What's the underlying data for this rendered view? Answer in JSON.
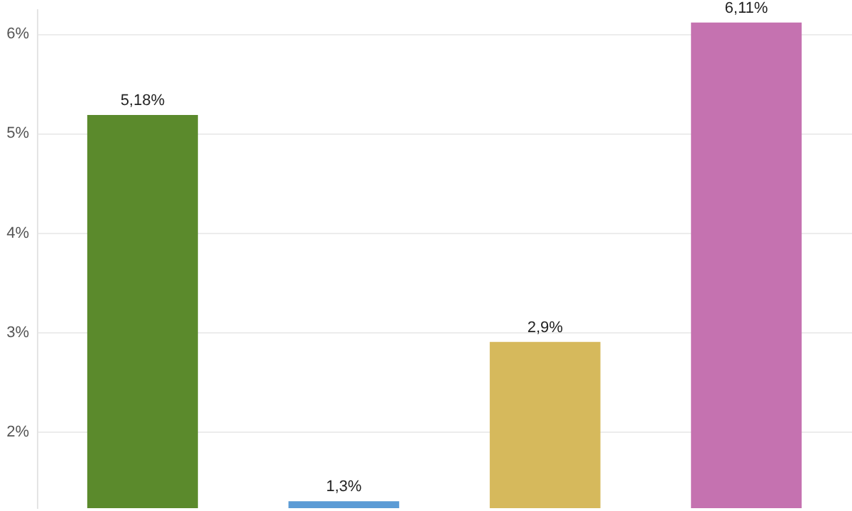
{
  "chart_data": {
    "type": "bar",
    "categories": [
      null,
      null,
      null,
      null
    ],
    "values": [
      5.18,
      1.3,
      2.9,
      6.11
    ],
    "colors": [
      "#5b8a2c",
      "#5b9bd5",
      "#d6b95c",
      "#c572b0"
    ],
    "value_labels": [
      "5,18%",
      "1,3%",
      "2,9%",
      "6,11%"
    ],
    "ylim": [
      1.23,
      6.25
    ],
    "yticks": [
      {
        "value": 2,
        "label": "2%"
      },
      {
        "value": 3,
        "label": "3%"
      },
      {
        "value": 4,
        "label": "4%"
      },
      {
        "value": 5,
        "label": "5%"
      },
      {
        "value": 6,
        "label": "6%"
      }
    ],
    "grid": "y"
  }
}
